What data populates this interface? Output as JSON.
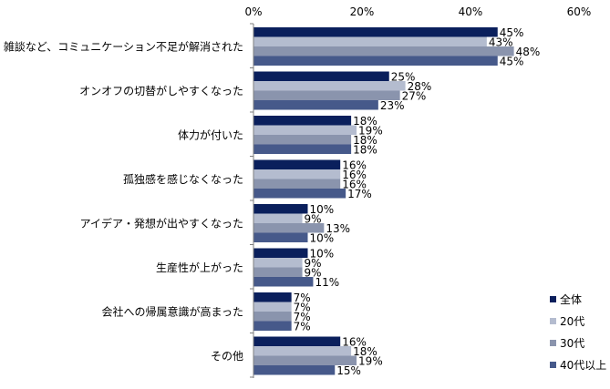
{
  "chart_data": {
    "type": "bar",
    "orientation": "horizontal",
    "categories": [
      "雑談など、コミュニケーション不足が解消された",
      "オンオフの切替がしやすくなった",
      "体力が付いた",
      "孤独感を感じなくなった",
      "アイデア・発想が出やすくなった",
      "生産性が上がった",
      "会社への帰属意識が高まった",
      "その他"
    ],
    "series": [
      {
        "name": "全体",
        "values": [
          45,
          25,
          18,
          16,
          10,
          10,
          7,
          16
        ],
        "labels": [
          "45%",
          "25%",
          "18%",
          "16%",
          "10%",
          "10%",
          "7%",
          "16%"
        ],
        "color": "#0a1f5c"
      },
      {
        "name": "20代",
        "values": [
          43,
          28,
          19,
          16,
          9,
          9,
          7,
          18
        ],
        "labels": [
          "43%",
          "28%",
          "19%",
          "16%",
          "9%",
          "9%",
          "7%",
          "18%"
        ],
        "color": "#b4bccf"
      },
      {
        "name": "30代",
        "values": [
          48,
          27,
          18,
          16,
          13,
          9,
          7,
          19
        ],
        "labels": [
          "48%",
          "27%",
          "18%",
          "16%",
          "13%",
          "9%",
          "7%",
          "19%"
        ],
        "color": "#8a94ad"
      },
      {
        "name": "40代以上",
        "values": [
          45,
          23,
          18,
          17,
          10,
          11,
          7,
          15
        ],
        "labels": [
          "45%",
          "23%",
          "18%",
          "17%",
          "10%",
          "11%",
          "7%",
          "15%"
        ],
        "color": "#46598a"
      }
    ],
    "xlim": [
      0,
      60
    ],
    "xticks": [
      0,
      20,
      40,
      60
    ],
    "xtick_labels": [
      "0%",
      "20%",
      "40%",
      "60%"
    ],
    "axis_position": "top",
    "grid": false,
    "legend_position": "bottom-right"
  }
}
